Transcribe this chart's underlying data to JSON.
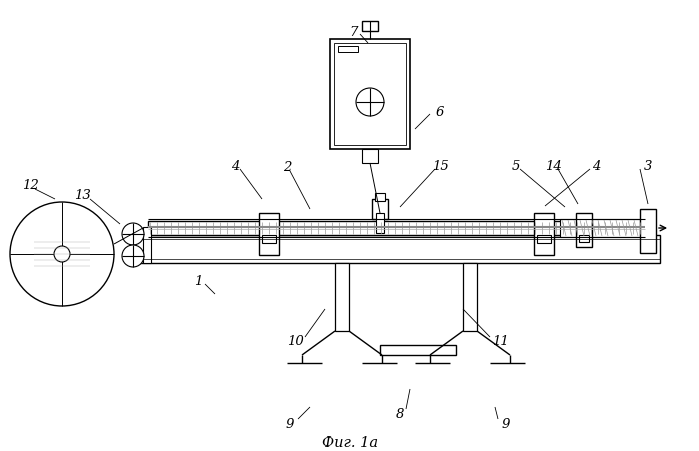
{
  "title": "Фиг. 1а",
  "bg_color": "#ffffff",
  "line_color": "#000000",
  "gray_light": "#e8e8e8",
  "gray_mid": "#d0d0d0",
  "gray_dark": "#aaaaaa"
}
